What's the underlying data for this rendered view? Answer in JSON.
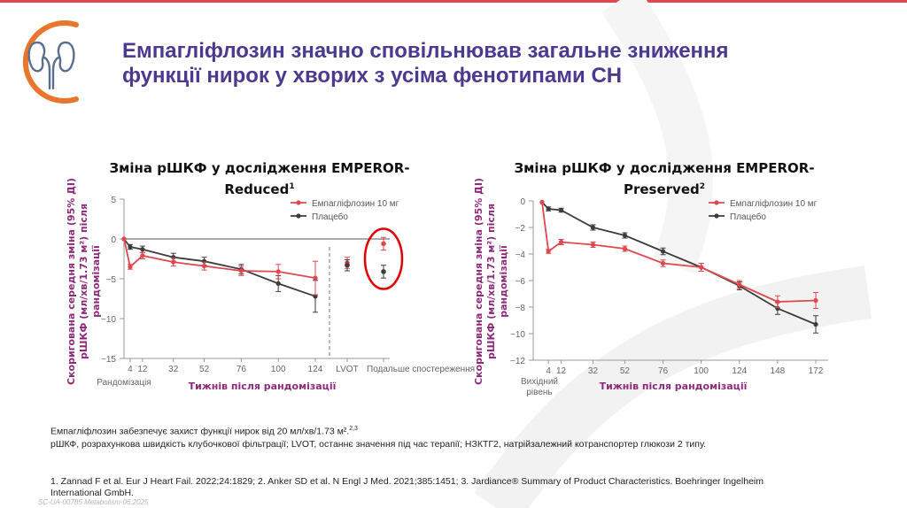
{
  "colors": {
    "title": "#4b3a8f",
    "accent_red": "#e0474e",
    "orange": "#e8762d",
    "placebo": "#3c3c3c",
    "axis_label": "#8e2a7a"
  },
  "logo": {
    "icon": "kidneys-icon"
  },
  "title": {
    "line1": "Емпагліфлозин значно сповільнював загальне зниження",
    "line2": "функції нирок у хворих з усіма фенотипами СН"
  },
  "chart_data": [
    {
      "type": "line",
      "title_line1": "Зміна рШКФ у дослідження EMPEROR-",
      "title_line2": "Reduced",
      "title_sup": "1",
      "ylabel_line1": "Скоригована середня зміна (95% ДІ)",
      "ylabel_line2": "рШКФ (мл/хв/1.73 м²) після",
      "ylabel_line3": "рандомізації",
      "xlabel": "Тижнів після рандомізації",
      "ylim": [
        -15,
        5
      ],
      "yticks": [
        5,
        0,
        -5,
        -10,
        -15
      ],
      "ytick_labels": [
        "5",
        "0",
        "−5",
        "−10",
        "−15"
      ],
      "xticks": [
        4,
        12,
        32,
        52,
        76,
        100,
        124
      ],
      "extra_ticks": [
        "LVOT",
        "Подальше спостереження"
      ],
      "under_label": "Рандомізація",
      "legend": [
        "Емпагліфлозин 10 мг",
        "Плацебо"
      ],
      "series": [
        {
          "name": "Емпагліфлозин 10 мг",
          "x": [
            0,
            4,
            12,
            32,
            52,
            76,
            100,
            124
          ],
          "y": [
            0,
            -3.5,
            -2.1,
            -2.9,
            -3.4,
            -4.0,
            -4.1,
            -4.9
          ],
          "err": [
            0,
            0.3,
            0.4,
            0.5,
            0.5,
            0.6,
            0.9,
            2.1
          ]
        },
        {
          "name": "Плацебо",
          "x": [
            0,
            4,
            12,
            32,
            52,
            76,
            100,
            124
          ],
          "y": [
            0,
            -1.0,
            -1.3,
            -2.3,
            -2.8,
            -3.8,
            -5.6,
            -7.2
          ],
          "err": [
            0,
            0.3,
            0.4,
            0.5,
            0.5,
            0.6,
            1.0,
            2.0
          ]
        }
      ],
      "lvot": {
        "empagliflozin": -3.0,
        "placebo": -3.3,
        "err": 0.7
      },
      "follow_up": {
        "empagliflozin": -0.6,
        "placebo": -4.1,
        "err": 0.8
      }
    },
    {
      "type": "line",
      "title_line1": "Зміна рШКФ у дослідження EMPEROR-",
      "title_line2": "Preserved",
      "title_sup": "2",
      "ylabel_line1": "Скоригована середня зміна (95% ДІ)",
      "ylabel_line2": "рШКФ (мл/хв/1.73 м²) після",
      "ylabel_line3": "рандомізації",
      "xlabel": "Тижнів після рандомізації",
      "ylim": [
        -12,
        0
      ],
      "yticks": [
        0,
        -2,
        -4,
        -6,
        -8,
        -10,
        -12
      ],
      "ytick_labels": [
        "0",
        "−2",
        "−4",
        "−6",
        "−8",
        "−10",
        "−12"
      ],
      "xticks": [
        4,
        12,
        32,
        52,
        76,
        100,
        124,
        148,
        172
      ],
      "under_label_line1": "Вихідний",
      "under_label_line2": "рівень",
      "legend": [
        "Емпагліфлозин 10 мг",
        "Плацебо"
      ],
      "series": [
        {
          "name": "Емпагліфлозин 10 мг",
          "x": [
            0,
            4,
            12,
            32,
            52,
            76,
            100,
            124,
            148,
            172
          ],
          "y": [
            -0.1,
            -3.8,
            -3.1,
            -3.3,
            -3.6,
            -4.7,
            -5.0,
            -6.3,
            -7.6,
            -7.5
          ],
          "err": [
            0,
            0.15,
            0.2,
            0.2,
            0.2,
            0.25,
            0.3,
            0.3,
            0.45,
            0.6
          ]
        },
        {
          "name": "Плацебо",
          "x": [
            0,
            4,
            12,
            32,
            52,
            76,
            100,
            124,
            148,
            172
          ],
          "y": [
            -0.1,
            -0.6,
            -0.7,
            -2.0,
            -2.6,
            -3.8,
            -5.0,
            -6.4,
            -8.1,
            -9.3
          ],
          "err": [
            0,
            0.15,
            0.15,
            0.2,
            0.2,
            0.25,
            0.3,
            0.3,
            0.45,
            0.65
          ]
        }
      ]
    }
  ],
  "notes": {
    "line1": "Емпагліфлозин забезпечує захист функції нирок від 20 мл/хв/1.73 м².",
    "line1_sup": "2,3",
    "line2": "рШКФ, розрахункова швидкість клубочкової фільтрації; LVOT, останнє значення під час терапії; НЗКТГ2, натрійзалежний котранспортер глюкози 2 типу."
  },
  "references": {
    "line1": "1. Zannad F et al. Eur J Heart Fail. 2022;24:1829; 2. Anker SD et al. N Engl J Med. 2021;385:1451; 3. Jardiance® Summary of Product Characteristics. Boehringer Ingelheim",
    "line2": "International GmbH."
  },
  "footer_code": "SC-UA-00785 Metabolism-06.2025"
}
